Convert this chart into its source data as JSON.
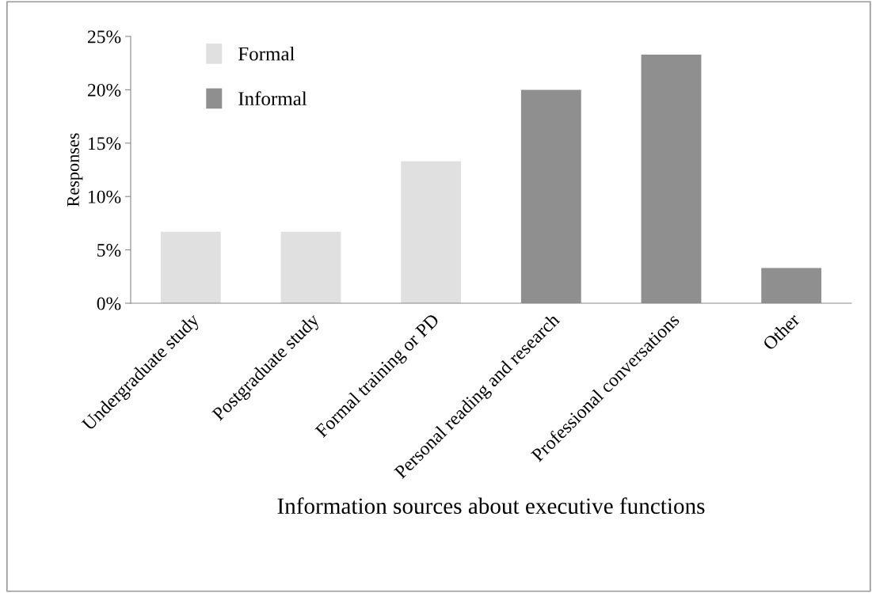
{
  "chart_data": {
    "type": "bar",
    "xlabel": "Information sources about executive functions",
    "ylabel": "Responses",
    "categories": [
      "Undergraduate study",
      "Postgraduate study",
      "Formal training or PD",
      "Personal reading and research",
      "Professional conversations",
      "Other"
    ],
    "series": [
      {
        "name": "Formal",
        "color": "#e0e0e0",
        "values": [
          6.7,
          6.7,
          13.3,
          null,
          null,
          null
        ]
      },
      {
        "name": "Informal",
        "color": "#8f8f8f",
        "values": [
          null,
          null,
          null,
          20,
          23.3,
          3.3
        ]
      }
    ],
    "ylim": [
      0,
      25
    ],
    "yticks": [
      {
        "value": 0,
        "label": "0%"
      },
      {
        "value": 5,
        "label": "5%"
      },
      {
        "value": 10,
        "label": "10%"
      },
      {
        "value": 15,
        "label": "15%"
      },
      {
        "value": 20,
        "label": "20%"
      },
      {
        "value": 25,
        "label": "25%"
      }
    ],
    "grid": false,
    "legend": "top left"
  }
}
